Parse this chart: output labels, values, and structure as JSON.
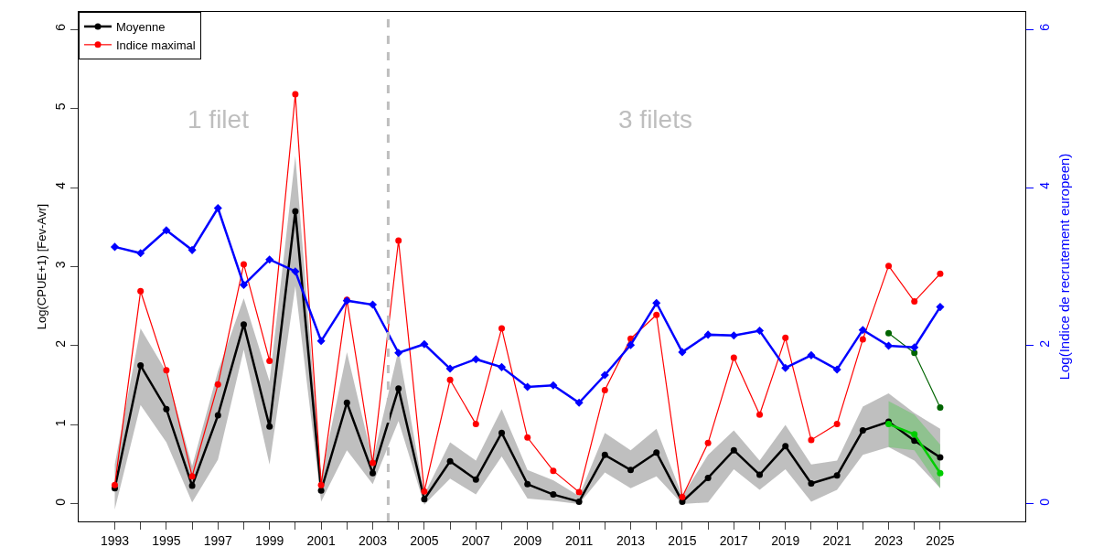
{
  "chart_data": {
    "type": "line",
    "ylabel": "Log(CPUE+1) [Fev-Avr]",
    "y2label": "Log(Indice de recrutement europeen)",
    "x": [
      1993,
      1994,
      1995,
      1996,
      1997,
      1998,
      1999,
      2000,
      2001,
      2002,
      2003,
      2004,
      2005,
      2006,
      2007,
      2008,
      2009,
      2010,
      2011,
      2012,
      2013,
      2014,
      2015,
      2016,
      2017,
      2018,
      2019,
      2020,
      2021,
      2022,
      2023,
      2024,
      2025
    ],
    "series": [
      {
        "name": "Moyenne",
        "color": "#000000",
        "values": [
          0.2,
          1.75,
          1.2,
          0.23,
          1.12,
          2.27,
          0.98,
          3.7,
          0.17,
          1.28,
          0.39,
          1.46,
          0.06,
          0.54,
          0.31,
          0.9,
          0.25,
          0.12,
          0.03,
          0.62,
          0.43,
          0.65,
          0.03,
          0.33,
          0.68,
          0.37,
          0.73,
          0.26,
          0.36,
          0.93,
          1.04,
          0.8,
          0.59
        ],
        "lower": [
          -0.07,
          1.25,
          0.78,
          0.02,
          0.56,
          1.95,
          0.5,
          2.75,
          0.03,
          0.68,
          0.25,
          1.05,
          -0.01,
          0.32,
          0.12,
          0.6,
          0.07,
          0.04,
          0.0,
          0.4,
          0.2,
          0.35,
          0.0,
          0.02,
          0.44,
          0.18,
          0.44,
          0.03,
          0.18,
          0.62,
          0.72,
          0.55,
          0.2
        ],
        "upper": [
          0.5,
          2.22,
          1.67,
          0.48,
          1.68,
          2.6,
          1.55,
          4.4,
          0.35,
          1.92,
          0.55,
          1.95,
          0.12,
          0.78,
          0.55,
          1.2,
          0.43,
          0.3,
          0.1,
          0.9,
          0.68,
          0.95,
          0.1,
          0.62,
          0.93,
          0.55,
          1.0,
          0.5,
          0.55,
          1.23,
          1.4,
          1.15,
          0.95
        ]
      },
      {
        "name": "Indice maximal",
        "color": "#ff0000",
        "values": [
          0.24,
          2.69,
          1.69,
          0.35,
          1.51,
          3.03,
          1.81,
          5.18,
          0.24,
          2.58,
          0.52,
          3.33,
          0.16,
          1.57,
          1.01,
          2.22,
          0.84,
          0.42,
          0.15,
          1.44,
          2.09,
          2.39,
          0.09,
          0.77,
          1.85,
          1.13,
          2.1,
          0.81,
          1.01,
          2.08,
          3.01,
          2.56,
          2.91
        ]
      },
      {
        "color": "#0000ff",
        "axis": "y2",
        "marker": "diamond",
        "values": [
          3.25,
          3.17,
          3.46,
          3.21,
          3.74,
          2.77,
          3.09,
          2.94,
          2.06,
          2.57,
          2.52,
          1.91,
          2.02,
          1.71,
          1.83,
          1.73,
          1.48,
          1.5,
          1.28,
          1.63,
          2.01,
          2.54,
          1.92,
          2.14,
          2.13,
          2.19,
          1.72,
          1.88,
          1.7,
          2.2,
          2.0,
          1.98,
          2.49
        ]
      },
      {
        "color": "#006400",
        "x": [
          2023,
          2024,
          2025
        ],
        "values": [
          2.16,
          1.91,
          1.22
        ]
      },
      {
        "color": "#00cd00",
        "x": [
          2023,
          2024,
          2025
        ],
        "values": [
          1.01,
          0.88,
          0.39
        ],
        "lower": [
          0.72,
          0.68,
          0.2
        ],
        "upper": [
          1.3,
          1.13,
          0.75
        ]
      }
    ],
    "xlim": [
      1991.6,
      2028.3
    ],
    "xticks": [
      1993,
      {
        "value": 1994,
        "label": null
      },
      1995,
      {
        "value": 1996,
        "label": null
      },
      1997,
      {
        "value": 1998,
        "label": null
      },
      1999,
      {
        "value": 2000,
        "label": null
      },
      2001,
      {
        "value": 2002,
        "label": null
      },
      2003,
      {
        "value": 2004,
        "label": null
      },
      2005,
      {
        "value": 2006,
        "label": null
      },
      2007,
      {
        "value": 2008,
        "label": null
      },
      2009,
      {
        "value": 2010,
        "label": null
      },
      2011,
      {
        "value": 2012,
        "label": null
      },
      2013,
      {
        "value": 2014,
        "label": null
      },
      2015,
      {
        "value": 2016,
        "label": null
      },
      2017,
      {
        "value": 2018,
        "label": null
      },
      2019,
      {
        "value": 2020,
        "label": null
      },
      2021,
      {
        "value": 2022,
        "label": null
      },
      2023,
      {
        "value": 2024,
        "label": null
      },
      2025
    ],
    "ylim": [
      -0.22,
      6.22
    ],
    "yticks": [
      0,
      1,
      2,
      3,
      4,
      5,
      6
    ],
    "y2lim": [
      -0.22,
      6.22
    ],
    "y2ticks": [
      0,
      2,
      4,
      6
    ],
    "ref_lines": [
      {
        "axis": "x",
        "value": 2003.6,
        "color": "#bebebe",
        "line_style": "dashed"
      }
    ],
    "annotations": [
      "1 filet",
      "3 filets"
    ],
    "marker": "circle",
    "line_style": "solid",
    "grid": false,
    "legend": "top left"
  }
}
